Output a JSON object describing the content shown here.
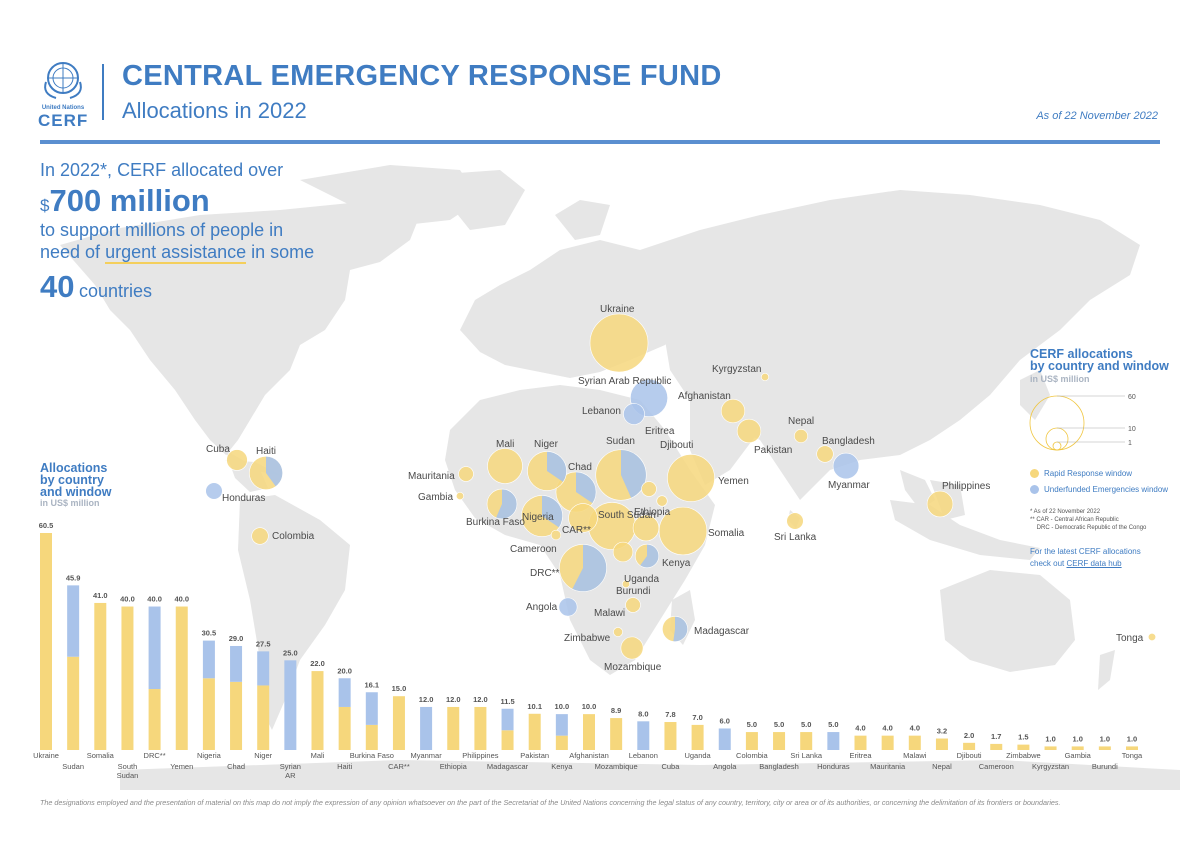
{
  "header": {
    "logo_org": "United Nations",
    "logo_name": "CERF",
    "title": "CENTRAL EMERGENCY RESPONSE FUND",
    "subtitle": "Allocations in 2022",
    "as_of": "As of 22 November 2022"
  },
  "intro": {
    "line1": "In 2022*, CERF allocated over",
    "currency": "$",
    "amount": "700 million",
    "line3a": "to support millions of people in",
    "line4a": "need of ",
    "line4_highlight": "urgent assistance",
    "line4b": " in some",
    "count": "40",
    "count_word": "countries"
  },
  "colors": {
    "rapid_response": "#f6d77c",
    "underfunded": "#a9c3ea",
    "brand": "#3f7cc2",
    "land": "#e6e6e6"
  },
  "map_legend": {
    "title_line1": "CERF allocations",
    "title_line2": "by country and window",
    "unit": "in US$ million",
    "scale_values": [
      "60",
      "10",
      "1"
    ],
    "items": [
      {
        "label": "Rapid Response window",
        "color": "#f6d77c"
      },
      {
        "label": "Underfunded Emergencies window",
        "color": "#a9c3ea"
      }
    ],
    "notes": [
      "*  As of 22 November 2022",
      "** CAR - Central African Republic",
      "    DRC - Democratic Republic of the Congo"
    ],
    "latest_text_1": "For the latest CERF allocations",
    "latest_text_2": "check out ",
    "latest_link": "CERF data hub"
  },
  "bar_panel": {
    "title_line1": "Allocations",
    "title_line2": "by country",
    "title_line3": "and window",
    "unit": "in US$ million"
  },
  "map_labels": [
    "Ukraine",
    "Kyrgyzstan",
    "Syrian Arab Republic",
    "Lebanon",
    "Afghanistan",
    "Nepal",
    "Pakistan",
    "Bangladesh",
    "Myanmar",
    "Philippines",
    "Sri Lanka",
    "Eritrea",
    "Sudan",
    "Djibouti",
    "Mali",
    "Niger",
    "Chad",
    "Yemen",
    "Mauritania",
    "Gambia",
    "Burkina Faso",
    "Nigeria",
    "CAR**",
    "South Sudan",
    "Ethiopia",
    "Somalia",
    "Cameroon",
    "DRC**",
    "Uganda",
    "Burundi",
    "Kenya",
    "Angola",
    "Malawi",
    "Zimbabwe",
    "Madagascar",
    "Mozambique",
    "Cuba",
    "Haiti",
    "Honduras",
    "Colombia",
    "Tonga"
  ],
  "chart_data": {
    "type": "bar",
    "stacked": true,
    "ylabel": "in US$ million",
    "ylim": [
      0,
      60.5
    ],
    "categories": [
      "Ukraine",
      "Sudan",
      "Somalia",
      "South Sudan",
      "DRC**",
      "Yemen",
      "Nigeria",
      "Chad",
      "Niger",
      "Syrian AR",
      "Mali",
      "Haiti",
      "Burkina Faso",
      "CAR**",
      "Myanmar",
      "Ethiopia",
      "Philippines",
      "Madagascar",
      "Pakistan",
      "Kenya",
      "Afghanistan",
      "Mozambique",
      "Lebanon",
      "Cuba",
      "Uganda",
      "Angola",
      "Colombia",
      "Bangladesh",
      "Sri Lanka",
      "Honduras",
      "Eritrea",
      "Mauritania",
      "Malawi",
      "Nepal",
      "Djibouti",
      "Cameroon",
      "Zimbabwe",
      "Kyrgyzstan",
      "Gambia",
      "Burundi",
      "Tonga"
    ],
    "totals": [
      "60.5",
      "45.9",
      "41.0",
      "40.0",
      "40.0",
      "40.0",
      "30.5",
      "29.0",
      "27.5",
      "25.0",
      "22.0",
      "20.0",
      "16.1",
      "15.0",
      "12.0",
      "12.0",
      "12.0",
      "11.5",
      "10.1",
      "10.0",
      "10.0",
      "8.9",
      "8.0",
      "7.8",
      "7.0",
      "6.0",
      "5.0",
      "5.0",
      "5.0",
      "5.0",
      "4.0",
      "4.0",
      "4.0",
      "3.2",
      "2.0",
      "1.7",
      "1.5",
      "1.0",
      "1.0",
      "1.0",
      "1.0"
    ],
    "series": [
      {
        "name": "Rapid Response window",
        "values": [
          60.5,
          26.0,
          41.0,
          40.0,
          17.0,
          40.0,
          20.0,
          19.0,
          18.0,
          0,
          22.0,
          12.0,
          7.0,
          15.0,
          0,
          12.0,
          12.0,
          5.5,
          10.1,
          4.0,
          10.0,
          8.9,
          0,
          7.8,
          7.0,
          0,
          5.0,
          5.0,
          5.0,
          0,
          4.0,
          4.0,
          4.0,
          3.2,
          2.0,
          1.7,
          1.5,
          1.0,
          1.0,
          1.0,
          1.0
        ]
      },
      {
        "name": "Underfunded Emergencies window",
        "values": [
          0,
          19.9,
          0,
          0,
          23.0,
          0,
          10.5,
          10.0,
          9.5,
          25.0,
          0,
          8.0,
          9.1,
          0,
          12.0,
          0,
          0,
          6.0,
          0,
          6.0,
          0,
          0,
          8.0,
          0,
          0,
          6.0,
          0,
          0,
          0,
          5.0,
          0,
          0,
          0,
          0,
          0,
          0,
          0,
          0,
          0,
          0,
          0
        ]
      }
    ],
    "label_row": [
      0,
      1,
      0,
      1,
      0,
      1,
      0,
      1,
      0,
      1,
      0,
      1,
      0,
      1,
      0,
      1,
      0,
      1,
      0,
      1,
      0,
      1,
      0,
      1,
      0,
      1,
      0,
      1,
      0,
      1,
      0,
      1,
      0,
      1,
      0,
      1,
      0,
      1,
      0,
      1,
      0
    ],
    "bubbles": [
      {
        "country": "Ukraine",
        "rr": 60.5,
        "ufe": 0
      },
      {
        "country": "Sudan",
        "rr": 26.0,
        "ufe": 19.9
      },
      {
        "country": "Somalia",
        "rr": 41.0,
        "ufe": 0
      },
      {
        "country": "South Sudan",
        "rr": 40.0,
        "ufe": 0
      },
      {
        "country": "DRC**",
        "rr": 17.0,
        "ufe": 23.0
      },
      {
        "country": "Yemen",
        "rr": 40.0,
        "ufe": 0
      },
      {
        "country": "Nigeria",
        "rr": 20.0,
        "ufe": 10.5
      },
      {
        "country": "Chad",
        "rr": 19.0,
        "ufe": 10.0
      },
      {
        "country": "Niger",
        "rr": 18.0,
        "ufe": 9.5
      },
      {
        "country": "Syrian Arab Republic",
        "rr": 0,
        "ufe": 25.0
      },
      {
        "country": "Mali",
        "rr": 22.0,
        "ufe": 0
      },
      {
        "country": "Haiti",
        "rr": 12.0,
        "ufe": 8.0
      },
      {
        "country": "Burkina Faso",
        "rr": 7.0,
        "ufe": 9.1
      },
      {
        "country": "CAR**",
        "rr": 15.0,
        "ufe": 0
      },
      {
        "country": "Myanmar",
        "rr": 0,
        "ufe": 12.0
      },
      {
        "country": "Ethiopia",
        "rr": 12.0,
        "ufe": 0
      },
      {
        "country": "Philippines",
        "rr": 12.0,
        "ufe": 0
      },
      {
        "country": "Madagascar",
        "rr": 5.5,
        "ufe": 6.0
      },
      {
        "country": "Pakistan",
        "rr": 10.1,
        "ufe": 0
      },
      {
        "country": "Kenya",
        "rr": 4.0,
        "ufe": 6.0
      },
      {
        "country": "Afghanistan",
        "rr": 10.0,
        "ufe": 0
      },
      {
        "country": "Mozambique",
        "rr": 8.9,
        "ufe": 0
      },
      {
        "country": "Lebanon",
        "rr": 0,
        "ufe": 8.0
      },
      {
        "country": "Cuba",
        "rr": 7.8,
        "ufe": 0
      },
      {
        "country": "Uganda",
        "rr": 7.0,
        "ufe": 0
      },
      {
        "country": "Angola",
        "rr": 0,
        "ufe": 6.0
      },
      {
        "country": "Colombia",
        "rr": 5.0,
        "ufe": 0
      },
      {
        "country": "Bangladesh",
        "rr": 5.0,
        "ufe": 0
      },
      {
        "country": "Sri Lanka",
        "rr": 5.0,
        "ufe": 0
      },
      {
        "country": "Honduras",
        "rr": 0,
        "ufe": 5.0
      },
      {
        "country": "Eritrea",
        "rr": 4.0,
        "ufe": 0
      },
      {
        "country": "Mauritania",
        "rr": 4.0,
        "ufe": 0
      },
      {
        "country": "Malawi",
        "rr": 4.0,
        "ufe": 0
      },
      {
        "country": "Nepal",
        "rr": 3.2,
        "ufe": 0
      },
      {
        "country": "Djibouti",
        "rr": 2.0,
        "ufe": 0
      },
      {
        "country": "Cameroon",
        "rr": 1.7,
        "ufe": 0
      },
      {
        "country": "Zimbabwe",
        "rr": 1.5,
        "ufe": 0
      },
      {
        "country": "Kyrgyzstan",
        "rr": 1.0,
        "ufe": 0
      },
      {
        "country": "Gambia",
        "rr": 1.0,
        "ufe": 0
      },
      {
        "country": "Burundi",
        "rr": 1.0,
        "ufe": 0
      },
      {
        "country": "Tonga",
        "rr": 1.0,
        "ufe": 0
      }
    ]
  },
  "disclaimer": "The designations employed and the presentation of material on this map do not imply the expression of any opinion whatsoever on the part of the Secretariat of the United Nations concerning the legal status of any country, territory, city or area or of its authorities, or concerning the delimitation of its frontiers or boundaries."
}
